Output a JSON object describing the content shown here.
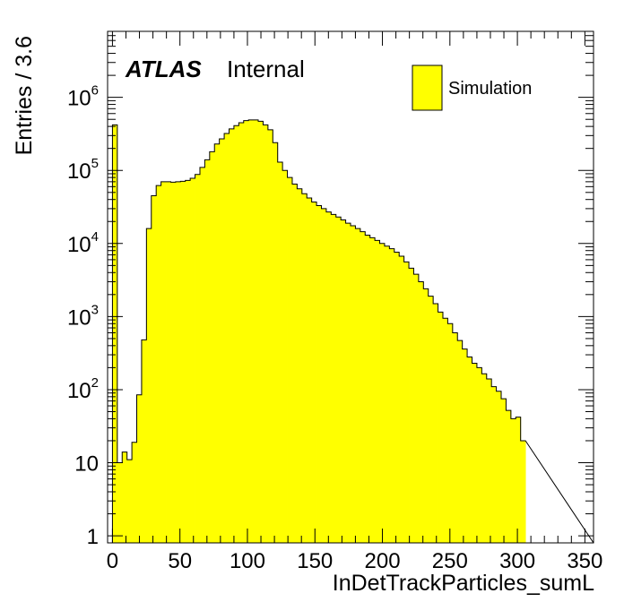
{
  "chart_data": {
    "type": "bar",
    "histogram": true,
    "xlabel": "InDetTrackParticles_sumL",
    "ylabel": "Entries / 3.6",
    "x_range": [
      -3.6,
      356.4
    ],
    "ylim": [
      0.8,
      8000000
    ],
    "y_scale": "log",
    "bin_width": 3.6,
    "x_ticks": [
      0,
      50,
      100,
      150,
      200,
      250,
      300,
      350
    ],
    "x_tick_labels": [
      "0",
      "50",
      "100",
      "150",
      "200",
      "250",
      "300",
      "350"
    ],
    "y_ticks": [
      {
        "value": 1,
        "base": "1",
        "exp": ""
      },
      {
        "value": 10,
        "base": "10",
        "exp": ""
      },
      {
        "value": 100,
        "base": "10",
        "exp": "2"
      },
      {
        "value": 1000,
        "base": "10",
        "exp": "3"
      },
      {
        "value": 10000,
        "base": "10",
        "exp": "4"
      },
      {
        "value": 100000,
        "base": "10",
        "exp": "5"
      },
      {
        "value": 1000000,
        "base": "10",
        "exp": "6"
      }
    ],
    "series": [
      {
        "name": "Simulation",
        "color": "#ffff00",
        "edge_color": "#000000",
        "values": [
          0.8,
          420000,
          10,
          14,
          11,
          19,
          85,
          480,
          16000,
          45000,
          62000,
          70000,
          70000,
          69000,
          70000,
          71000,
          73000,
          78000,
          88000,
          110000,
          140000,
          180000,
          230000,
          270000,
          320000,
          370000,
          410000,
          450000,
          480000,
          490000,
          490000,
          470000,
          420000,
          360000,
          240000,
          130000,
          100000,
          80000,
          65000,
          56000,
          48000,
          42000,
          37000,
          33000,
          30000,
          27000,
          25000,
          23000,
          21000,
          19000,
          17500,
          16000,
          14500,
          13000,
          12000,
          11000,
          10000,
          9200,
          8500,
          7600,
          6700,
          5600,
          4600,
          3800,
          3000,
          2400,
          1900,
          1500,
          1150,
          950,
          800,
          600,
          470,
          360,
          280,
          230,
          200,
          165,
          140,
          110,
          95,
          75,
          52,
          40,
          42,
          20
        ]
      }
    ],
    "annotations": {
      "atlas": "ATLAS",
      "status": "Internal"
    },
    "legend": {
      "placement": "top-right",
      "entries": [
        "Simulation"
      ]
    }
  }
}
